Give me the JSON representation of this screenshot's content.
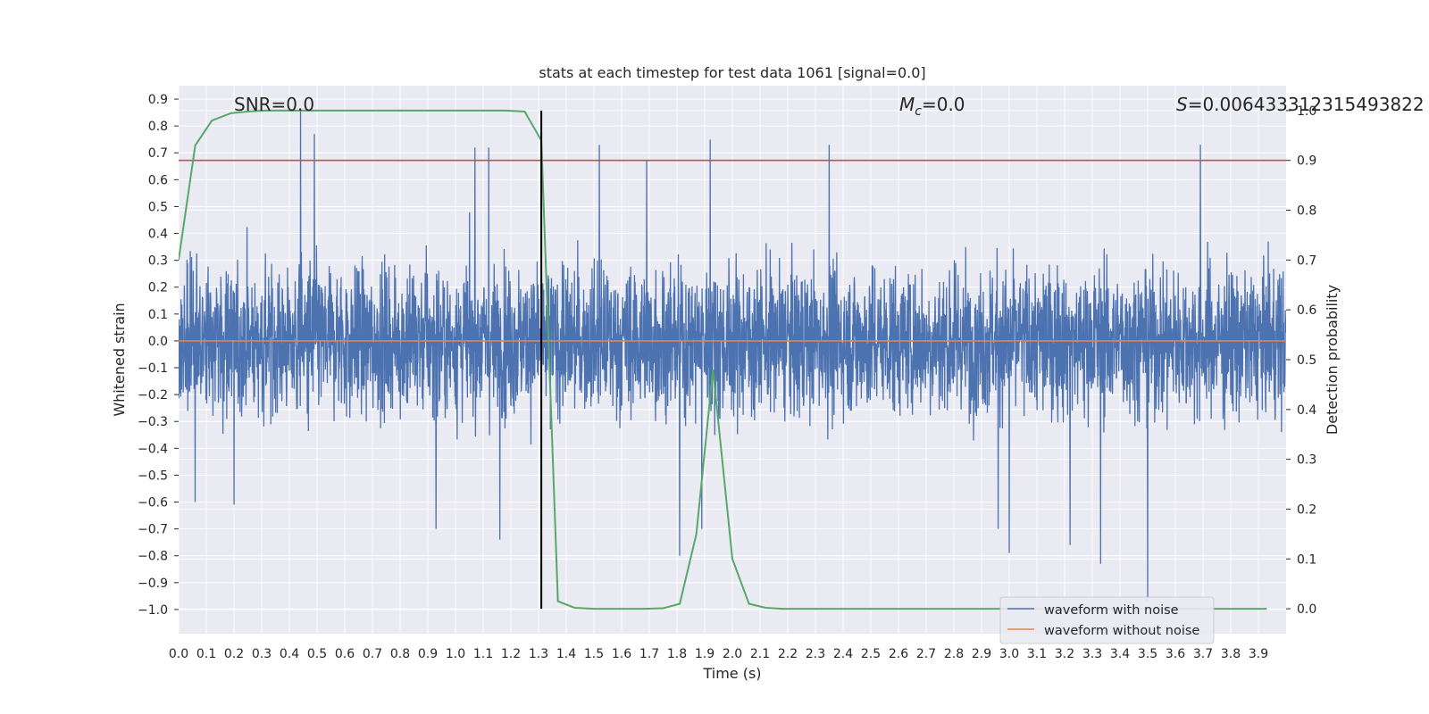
{
  "chart_data": {
    "type": "line",
    "title": "stats at each timestep for test data 1061 [signal=0.0]",
    "xlabel": "Time (s)",
    "ylabel": "Whitened strain",
    "y2label": "Detection probability",
    "xlim": [
      0.0,
      4.0
    ],
    "ylim": [
      -1.09,
      0.95
    ],
    "y2lim": [
      -0.05,
      1.05
    ],
    "xticks": [
      "0.0",
      "0.1",
      "0.2",
      "0.3",
      "0.4",
      "0.5",
      "0.6",
      "0.7",
      "0.8",
      "0.9",
      "1.0",
      "1.1",
      "1.2",
      "1.3",
      "1.4",
      "1.5",
      "1.6",
      "1.7",
      "1.8",
      "1.9",
      "2.0",
      "2.1",
      "2.2",
      "2.3",
      "2.4",
      "2.5",
      "2.6",
      "2.7",
      "2.8",
      "2.9",
      "3.0",
      "3.1",
      "3.2",
      "3.3",
      "3.4",
      "3.5",
      "3.6",
      "3.7",
      "3.8",
      "3.9"
    ],
    "yticks": [
      "0.9",
      "0.8",
      "0.7",
      "0.6",
      "0.5",
      "0.4",
      "0.3",
      "0.2",
      "0.1",
      "0.0",
      "−0.1",
      "−0.2",
      "−0.3",
      "−0.4",
      "−0.5",
      "−0.6",
      "−0.7",
      "−0.8",
      "−0.9",
      "−1.0"
    ],
    "y2ticks": [
      "1.0",
      "0.9",
      "0.8",
      "0.7",
      "0.6",
      "0.5",
      "0.4",
      "0.3",
      "0.2",
      "0.1",
      "0.0"
    ],
    "grid": true,
    "legend_position": "lower-right",
    "annotations": {
      "snr": "SNR=0.0",
      "mc_symbol": "M",
      "mc_sub": "c",
      "mc_value": "=0.0",
      "s_symbol": "S",
      "s_value": "=0.006433312315493822"
    },
    "colors": {
      "noise": "#4c72b0",
      "clean": "#dd8452",
      "probability": "#55a868",
      "threshold": "#c44e52",
      "marker": "#000000",
      "background": "#eaeaf2"
    },
    "series": [
      {
        "name": "waveform with noise",
        "role": "noisy strain",
        "amplitude_range": [
          -0.97,
          0.86
        ],
        "typical_abs_peak": 0.35,
        "spikes": [
          [
            0.44,
            0.86
          ],
          [
            0.49,
            0.77
          ],
          [
            1.07,
            0.72
          ],
          [
            1.12,
            0.72
          ],
          [
            1.52,
            0.73
          ],
          [
            1.69,
            0.67
          ],
          [
            2.35,
            0.73
          ],
          [
            3.69,
            0.73
          ],
          [
            3.5,
            -0.97
          ],
          [
            3.33,
            -0.83
          ],
          [
            3.0,
            -0.79
          ],
          [
            1.16,
            -0.74
          ],
          [
            0.93,
            -0.7
          ],
          [
            1.81,
            -0.8
          ],
          [
            1.89,
            -0.7
          ],
          [
            1.92,
            0.75
          ],
          [
            3.22,
            -0.76
          ],
          [
            0.06,
            -0.6
          ],
          [
            0.2,
            -0.61
          ],
          [
            2.96,
            -0.7
          ]
        ]
      },
      {
        "name": "waveform without noise",
        "role": "clean strain",
        "x": [
          0.0,
          4.0
        ],
        "y": [
          0.0,
          0.0
        ]
      },
      {
        "name": "Detection probability",
        "axis": "right",
        "x": [
          0.0,
          0.06,
          0.12,
          0.19,
          0.25,
          0.31,
          0.37,
          0.43,
          0.5,
          0.56,
          0.62,
          0.68,
          0.75,
          0.81,
          0.87,
          0.93,
          1.0,
          1.06,
          1.12,
          1.18,
          1.25,
          1.31,
          1.37,
          1.43,
          1.5,
          1.56,
          1.62,
          1.68,
          1.75,
          1.81,
          1.87,
          1.93,
          2.0,
          2.06,
          2.12,
          2.18,
          2.25,
          2.31,
          2.37,
          2.43,
          2.5,
          2.56,
          2.62,
          2.68,
          2.75,
          2.81,
          2.87,
          2.93,
          3.0,
          3.06,
          3.12,
          3.18,
          3.25,
          3.31,
          3.37,
          3.43,
          3.5,
          3.56,
          3.62,
          3.68,
          3.75,
          3.81,
          3.87,
          3.93
        ],
        "y": [
          0.7,
          0.93,
          0.98,
          0.995,
          0.998,
          1.0,
          1.0,
          1.0,
          1.0,
          1.0,
          1.0,
          1.0,
          1.0,
          1.0,
          1.0,
          1.0,
          1.0,
          1.0,
          1.0,
          1.0,
          0.998,
          0.94,
          0.015,
          0.002,
          0.0,
          0.0,
          0.0,
          0.0,
          0.001,
          0.01,
          0.15,
          0.48,
          0.1,
          0.01,
          0.002,
          0.0,
          0.0,
          0.0,
          0.0,
          0.0,
          0.0,
          0.0,
          0.0,
          0.0,
          0.0,
          0.0,
          0.0,
          0.0,
          0.0,
          0.0,
          0.0,
          0.0,
          0.0,
          0.0,
          0.0,
          0.0,
          0.0,
          0.0,
          0.0,
          0.0,
          0.0,
          0.0,
          0.0,
          0.0
        ]
      }
    ],
    "threshold": {
      "axis": "right",
      "y": 0.9
    },
    "marker": {
      "x": 1.31,
      "y2": [
        0.0,
        1.0
      ]
    }
  }
}
